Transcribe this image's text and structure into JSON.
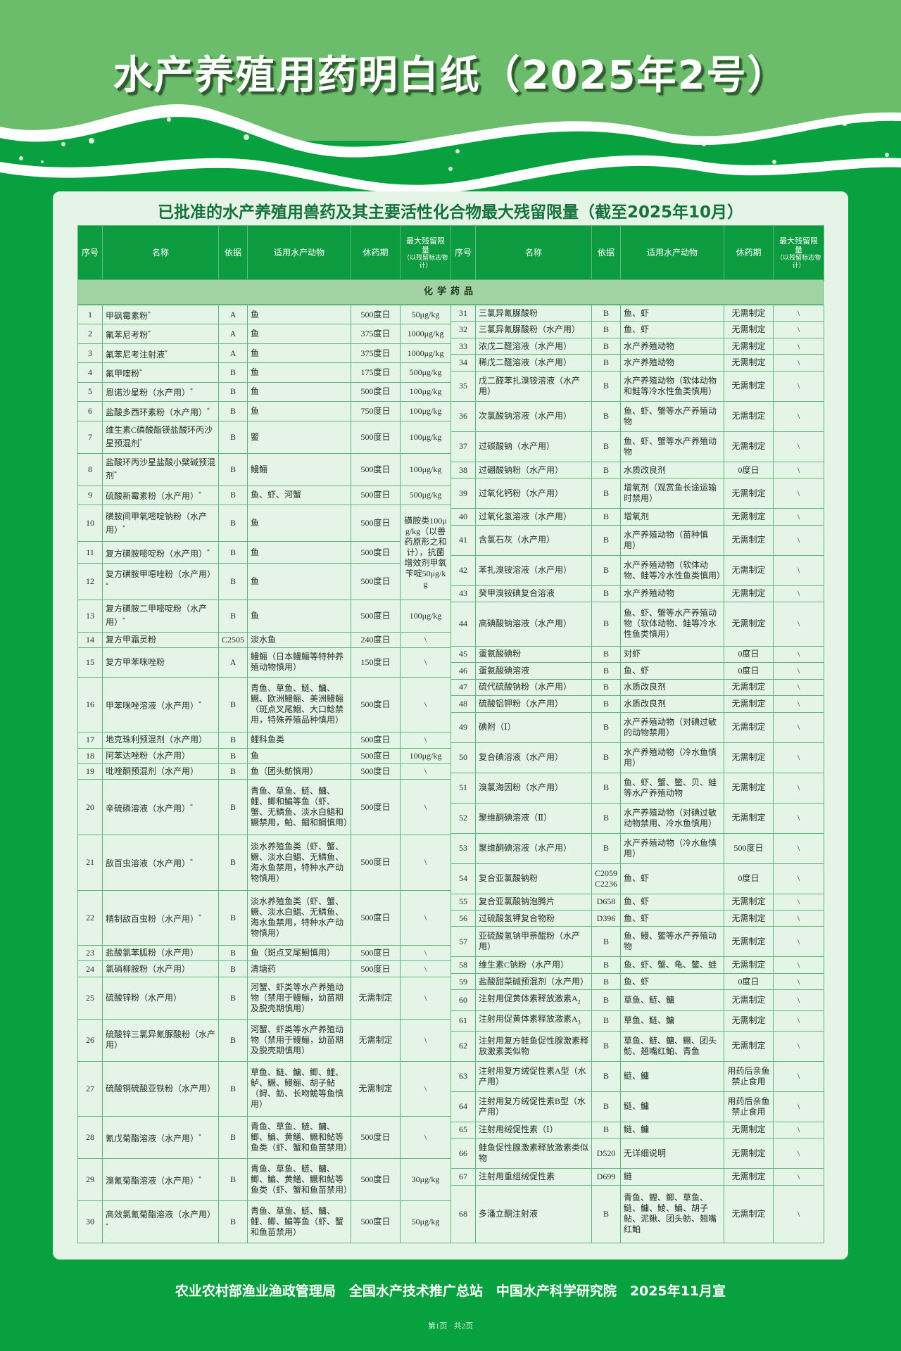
{
  "header": {
    "title": "水产养殖用药明白纸（2025年2号）"
  },
  "subtitle": "已批准的水产养殖用兽药及其主要活性化合物最大残留限量（截至2025年10月）",
  "colors": {
    "header_green": "#0d9b40",
    "band_green": "#a2d4a3",
    "panel_bg": "#e4f5e8",
    "page_green": "#07a23f"
  },
  "table": {
    "columns": {
      "no": "序号",
      "name": "名称",
      "basis": "依据",
      "animals": "适用水产动物",
      "withdrawal": "休药期",
      "mrl": "最大残留限量",
      "mrl_note": "（以残留标志物计）"
    },
    "section": "化学药品",
    "rows": [
      {
        "no": "1",
        "name": "甲砜霉素粉",
        "mark": "*",
        "basis": "A",
        "animals": "鱼",
        "withdrawal": "500度日",
        "mrl": "50μg/kg"
      },
      {
        "no": "2",
        "name": "氟苯尼考粉",
        "mark": "*",
        "basis": "A",
        "animals": "鱼",
        "withdrawal": "375度日",
        "mrl": "1000μg/kg"
      },
      {
        "no": "3",
        "name": "氟苯尼考注射液",
        "mark": "*",
        "basis": "A",
        "animals": "鱼",
        "withdrawal": "375度日",
        "mrl": "1000μg/kg"
      },
      {
        "no": "4",
        "name": "氟甲喹粉",
        "mark": "*",
        "basis": "B",
        "animals": "鱼",
        "withdrawal": "175度日",
        "mrl": "500μg/kg"
      },
      {
        "no": "5",
        "name": "恩诺沙星粉（水产用）",
        "mark": "*",
        "basis": "B",
        "animals": "鱼",
        "withdrawal": "500度日",
        "mrl": "100μg/kg"
      },
      {
        "no": "6",
        "name": "盐酸多西环素粉（水产用）",
        "mark": "*",
        "basis": "B",
        "animals": "鱼",
        "withdrawal": "750度日",
        "mrl": "100μg/kg"
      },
      {
        "no": "7",
        "name": "维生素C磷酸酯镁盐酸环丙沙星预混剂",
        "mark": "*",
        "basis": "B",
        "animals": "鳖",
        "withdrawal": "500度日",
        "mrl": "100μg/kg"
      },
      {
        "no": "8",
        "name": "盐酸环丙沙星盐酸小檗碱预混剂",
        "mark": "*",
        "basis": "B",
        "animals": "鳗鲡",
        "withdrawal": "500度日",
        "mrl": "100μg/kg"
      },
      {
        "no": "9",
        "name": "硫酸新霉素粉（水产用）",
        "mark": "*",
        "basis": "B",
        "animals": "鱼、虾、河蟹",
        "withdrawal": "500度日",
        "mrl": "500μg/kg"
      },
      {
        "no": "10",
        "name": "磺胺间甲氧嘧啶钠粉（水产用）",
        "mark": "*",
        "basis": "B",
        "animals": "鱼",
        "withdrawal": "500度日",
        "mrl": "磺胺类100μg/kg（以兽药原形之和计），抗菌增效剂甲氧苄啶50μg/kg",
        "mrl_rows": 3
      },
      {
        "no": "11",
        "name": "复方磺胺嘧啶粉（水产用）",
        "mark": "*",
        "basis": "B",
        "animals": "鱼",
        "withdrawal": "500度日"
      },
      {
        "no": "12",
        "name": "复方磺胺甲噁唑粉（水产用）",
        "mark": "*",
        "basis": "B",
        "animals": "鱼",
        "withdrawal": "500度日"
      },
      {
        "no": "13",
        "name": "复方磺胺二甲嘧啶粉（水产用）",
        "mark": "*",
        "basis": "B",
        "animals": "鱼",
        "withdrawal": "500度日",
        "mrl": "100μg/kg"
      },
      {
        "no": "14",
        "name": "复方甲霜灵粉",
        "basis": "C2505",
        "animals": "淡水鱼",
        "withdrawal": "240度日",
        "mrl": "\\"
      },
      {
        "no": "15",
        "name": "复方甲苯咪唑粉",
        "basis": "A",
        "animals": "鳗鲡（日本鳗鲡等特种养殖动物慎用）",
        "withdrawal": "150度日",
        "mrl": "\\"
      },
      {
        "no": "16",
        "name": "甲苯咪唑溶液（水产用）",
        "mark": "*",
        "basis": "B",
        "animals": "青鱼、草鱼、鲢、鳙、鳜、欧洲鳗鲡、美洲鳗鲡（斑点叉尾鮰、大口鲶禁用，特殊养殖品种慎用）",
        "withdrawal": "500度日",
        "mrl": "\\"
      },
      {
        "no": "17",
        "name": "地克珠利预混剂（水产用）",
        "basis": "B",
        "animals": "鲤科鱼类",
        "withdrawal": "500度日",
        "mrl": "\\"
      },
      {
        "no": "18",
        "name": "阿苯达唑粉（水产用）",
        "basis": "B",
        "animals": "鱼",
        "withdrawal": "500度日",
        "mrl": "100μg/kg"
      },
      {
        "no": "19",
        "name": "吡喹酮预混剂（水产用）",
        "basis": "B",
        "animals": "鱼（团头鲂慎用）",
        "withdrawal": "500度日",
        "mrl": "\\"
      },
      {
        "no": "20",
        "name": "辛硫磷溶液（水产用）",
        "mark": "*",
        "basis": "B",
        "animals": "青鱼、草鱼、鲢、鳙、鲤、鲫和鳊等鱼（虾、蟹、无鳞鱼、淡水白鲳和鳜禁用，鲌、鲴和鲷慎用）",
        "withdrawal": "500度日",
        "mrl": "\\"
      },
      {
        "no": "21",
        "name": "敌百虫溶液（水产用）",
        "mark": "*",
        "basis": "B",
        "animals": "淡水养殖鱼类（虾、蟹、鳜、淡水白鲳、无鳞鱼、海水鱼禁用，特种水产动物慎用）",
        "withdrawal": "500度日",
        "mrl": "\\"
      },
      {
        "no": "22",
        "name": "精制敌百虫粉（水产用）",
        "mark": "*",
        "basis": "B",
        "animals": "淡水养殖鱼类（虾、蟹、鳜、淡水白鲳、无鳞鱼、海水鱼禁用，特种水产动物慎用）",
        "withdrawal": "500度日",
        "mrl": "\\"
      },
      {
        "no": "23",
        "name": "盐酸氯苯胍粉（水产用）",
        "basis": "B",
        "animals": "鱼（斑点叉尾鮰慎用）",
        "withdrawal": "500度日",
        "mrl": "\\"
      },
      {
        "no": "24",
        "name": "氯硝柳胺粉（水产用）",
        "basis": "B",
        "animals": "清塘药",
        "withdrawal": "500度日",
        "mrl": "\\"
      },
      {
        "no": "25",
        "name": "硫酸锌粉（水产用）",
        "basis": "B",
        "animals": "河蟹、虾类等水产养殖动物（禁用于鳗鲡，幼苗期及脱壳期慎用）",
        "withdrawal": "无需制定",
        "mrl": "\\"
      },
      {
        "no": "26",
        "name": "硫酸锌三氯异氰脲酸粉（水产用）",
        "basis": "B",
        "animals": "河蟹、虾类等水产养殖动物（禁用于鳗鲡，幼苗期及脱壳期慎用）",
        "withdrawal": "无需制定",
        "mrl": "\\"
      },
      {
        "no": "27",
        "name": "硫酸铜硫酸亚铁粉（水产用）",
        "basis": "B",
        "animals": "草鱼、鲢、鳙、鲫、鲤、鲈、鳜、鳗鲡、胡子鲇（鲟、鲂、长吻鮠等鱼慎用）",
        "withdrawal": "无需制定",
        "mrl": "\\"
      },
      {
        "no": "28",
        "name": "氰戊菊酯溶液（水产用）",
        "mark": "*",
        "basis": "B",
        "animals": "青鱼、草鱼、鲢、鳙、鲫、鳊、黄鳝、鳜和鲇等鱼类（虾、蟹和鱼苗禁用）",
        "withdrawal": "500度日",
        "mrl": "\\"
      },
      {
        "no": "29",
        "name": "溴氰菊酯溶液（水产用）",
        "mark": "*",
        "basis": "B",
        "animals": "青鱼、草鱼、鲢、鳙、鲫、鳊、黄鳝、鳜和鲇等鱼类（虾、蟹和鱼苗禁用）",
        "withdrawal": "500度日",
        "mrl": "30μg/kg"
      },
      {
        "no": "30",
        "name": "高效氯氰菊酯溶液（水产用）",
        "mark": "*",
        "basis": "B",
        "animals": "青鱼、草鱼、鲢、鳙、鲤、鲫、鳊等鱼（虾、蟹和鱼苗禁用）",
        "withdrawal": "500度日",
        "mrl": "50μg/kg"
      },
      {
        "no": "31",
        "name": "三氯异氰脲酸粉",
        "basis": "B",
        "animals": "鱼、虾",
        "withdrawal": "无需制定",
        "mrl": "\\"
      },
      {
        "no": "32",
        "name": "三氯异氰脲酸粉（水产用）",
        "basis": "B",
        "animals": "鱼、虾",
        "withdrawal": "无需制定",
        "mrl": "\\"
      },
      {
        "no": "33",
        "name": "浓戊二醛溶液（水产用）",
        "basis": "B",
        "animals": "水产养殖动物",
        "withdrawal": "无需制定",
        "mrl": "\\"
      },
      {
        "no": "34",
        "name": "稀戊二醛溶液（水产用）",
        "basis": "B",
        "animals": "水产养殖动物",
        "withdrawal": "无需制定",
        "mrl": "\\"
      },
      {
        "no": "35",
        "name": "戊二醛苯扎溴铵溶液（水产用）",
        "basis": "B",
        "animals": "水产养殖动物（软体动物和鲑等冷水性鱼类慎用）",
        "withdrawal": "无需制定",
        "mrl": "\\"
      },
      {
        "no": "36",
        "name": "次氯酸钠溶液（水产用）",
        "basis": "B",
        "animals": "鱼、虾、蟹等水产养殖动物",
        "withdrawal": "无需制定",
        "mrl": "\\"
      },
      {
        "no": "37",
        "name": "过碳酸钠（水产用）",
        "basis": "B",
        "animals": "鱼、虾、蟹等水产养殖动物",
        "withdrawal": "无需制定",
        "mrl": "\\"
      },
      {
        "no": "38",
        "name": "过硼酸钠粉（水产用）",
        "basis": "B",
        "animals": "水质改良剂",
        "withdrawal": "0度日",
        "mrl": "\\"
      },
      {
        "no": "39",
        "name": "过氧化钙粉（水产用）",
        "basis": "B",
        "animals": "增氧剂（观赏鱼长途运输时禁用）",
        "withdrawal": "无需制定",
        "mrl": "\\"
      },
      {
        "no": "40",
        "name": "过氧化氢溶液（水产用）",
        "basis": "B",
        "animals": "增氧剂",
        "withdrawal": "无需制定",
        "mrl": "\\"
      },
      {
        "no": "41",
        "name": "含氯石灰（水产用）",
        "basis": "B",
        "animals": "水产养殖动物（苗种慎用）",
        "withdrawal": "无需制定",
        "mrl": "\\"
      },
      {
        "no": "42",
        "name": "苯扎溴铵溶液（水产用）",
        "basis": "B",
        "animals": "水产养殖动物（软体动物、鲑等冷水性鱼类慎用）",
        "withdrawal": "无需制定",
        "mrl": "\\"
      },
      {
        "no": "43",
        "name": "癸甲溴铵碘复合溶液",
        "basis": "B",
        "animals": "水产养殖动物",
        "withdrawal": "无需制定",
        "mrl": "\\"
      },
      {
        "no": "44",
        "name": "高碘酸钠溶液（水产用）",
        "basis": "B",
        "animals": "鱼、虾、蟹等水产养殖动物（软体动物、鲑等冷水性鱼类慎用）",
        "withdrawal": "无需制定",
        "mrl": "\\"
      },
      {
        "no": "45",
        "name": "蛋氨酸碘粉",
        "basis": "B",
        "animals": "对虾",
        "withdrawal": "0度日",
        "mrl": "\\"
      },
      {
        "no": "46",
        "name": "蛋氨酸碘溶液",
        "basis": "B",
        "animals": "鱼、虾",
        "withdrawal": "0度日",
        "mrl": "\\"
      },
      {
        "no": "47",
        "name": "硫代硫酸钠粉（水产用）",
        "basis": "B",
        "animals": "水质改良剂",
        "withdrawal": "无需制定",
        "mrl": "\\"
      },
      {
        "no": "48",
        "name": "硫酸铝钾粉（水产用）",
        "basis": "B",
        "animals": "水质改良剂",
        "withdrawal": "无需制定",
        "mrl": "\\"
      },
      {
        "no": "49",
        "name": "碘附（Ⅰ）",
        "basis": "B",
        "animals": "水产养殖动物（对碘过敏的动物禁用）",
        "withdrawal": "无需制定",
        "mrl": "\\"
      },
      {
        "no": "50",
        "name": "复合碘溶液（水产用）",
        "basis": "B",
        "animals": "水产养殖动物（冷水鱼慎用）",
        "withdrawal": "无需制定",
        "mrl": "\\"
      },
      {
        "no": "51",
        "name": "溴氯海因粉（水产用）",
        "basis": "B",
        "animals": "鱼、虾、蟹、鳖、贝、蛙等水产养殖动物",
        "withdrawal": "无需制定",
        "mrl": "\\"
      },
      {
        "no": "52",
        "name": "聚维酮碘溶液（Ⅱ）",
        "basis": "B",
        "animals": "水产养殖动物（对碘过敏动物禁用、冷水鱼慎用）",
        "withdrawal": "无需制定",
        "mrl": "\\"
      },
      {
        "no": "53",
        "name": "聚维酮碘溶液（水产用）",
        "basis": "B",
        "animals": "水产养殖动物（冷水鱼慎用）",
        "withdrawal": "500度日",
        "mrl": "\\"
      },
      {
        "no": "54",
        "name": "复合亚氯酸钠粉",
        "basis": "C2059\nC2236",
        "animals": "鱼、虾",
        "withdrawal": "0度日",
        "mrl": "\\"
      },
      {
        "no": "55",
        "name": "复合亚氯酸钠泡腾片",
        "basis": "D658",
        "animals": "鱼、虾",
        "withdrawal": "无需制定",
        "mrl": "\\"
      },
      {
        "no": "56",
        "name": "过硫酸氢钾复合物粉",
        "basis": "D396",
        "animals": "鱼、虾",
        "withdrawal": "无需制定",
        "mrl": "\\"
      },
      {
        "no": "57",
        "name": "亚硫酸氢钠甲萘醌粉（水产用）",
        "basis": "B",
        "animals": "鱼、鳗、鳖等水产养殖动物",
        "withdrawal": "无需制定",
        "mrl": "\\"
      },
      {
        "no": "58",
        "name": "维生素C钠粉（水产用）",
        "basis": "B",
        "animals": "鱼、虾、蟹、龟、鳖、蛙",
        "withdrawal": "无需制定",
        "mrl": "\\"
      },
      {
        "no": "59",
        "name": "盐酸甜菜碱预混剂（水产用）",
        "basis": "B",
        "animals": "鱼、虾",
        "withdrawal": "0度日",
        "mrl": "\\"
      },
      {
        "no": "60",
        "name": "注射用促黄体素释放激素A",
        "sub": "2",
        "basis": "B",
        "animals": "草鱼、鲢、鳙",
        "withdrawal": "无需制定",
        "mrl": "\\"
      },
      {
        "no": "61",
        "name": "注射用促黄体素释放激素A",
        "sub": "3",
        "basis": "B",
        "animals": "草鱼、鲢、鳙",
        "withdrawal": "无需制定",
        "mrl": "\\"
      },
      {
        "no": "62",
        "name": "注射用复方鲑鱼促性腺激素释放激素类似物",
        "basis": "B",
        "animals": "草鱼、鲢、鳙、鳜、团头鲂、翘嘴红鲌、青鱼",
        "withdrawal": "无需制定",
        "mrl": "\\"
      },
      {
        "no": "63",
        "name": "注射用复方绒促性素A型（水产用）",
        "basis": "B",
        "animals": "鲢、鳙",
        "withdrawal": "用药后亲鱼禁止食用",
        "mrl": "\\"
      },
      {
        "no": "64",
        "name": "注射用复方绒促性素B型（水产用）",
        "basis": "B",
        "animals": "鲢、鳙",
        "withdrawal": "用药后亲鱼禁止食用",
        "mrl": "\\"
      },
      {
        "no": "65",
        "name": "注射用绒促性素（Ⅰ）",
        "basis": "B",
        "animals": "鲢、鳙",
        "withdrawal": "无需制定",
        "mrl": "\\"
      },
      {
        "no": "66",
        "name": "鲑鱼促性腺激素释放激素类似物",
        "basis": "D520",
        "animals": "无详细说明",
        "withdrawal": "无需制定",
        "mrl": "\\"
      },
      {
        "no": "67",
        "name": "注射用重组绒促性素",
        "basis": "D699",
        "animals": "鲢",
        "withdrawal": "无需制定",
        "mrl": "\\"
      },
      {
        "no": "68",
        "name": "多潘立酮注射液",
        "basis": "B",
        "animals": "青鱼、鲤、鲫、草鱼、鲢、鳙、鲮、鳊、胡子鲇、泥鳅、团头鲂、翘嘴红鲌",
        "withdrawal": "无需制定",
        "mrl": "\\"
      }
    ]
  },
  "footer": {
    "issuers": "农业农村部渔业渔政管理局　全国水产技术推广总站　中国水产科学研究院　2025年11月宣",
    "page": "第1页 · 共2页"
  }
}
